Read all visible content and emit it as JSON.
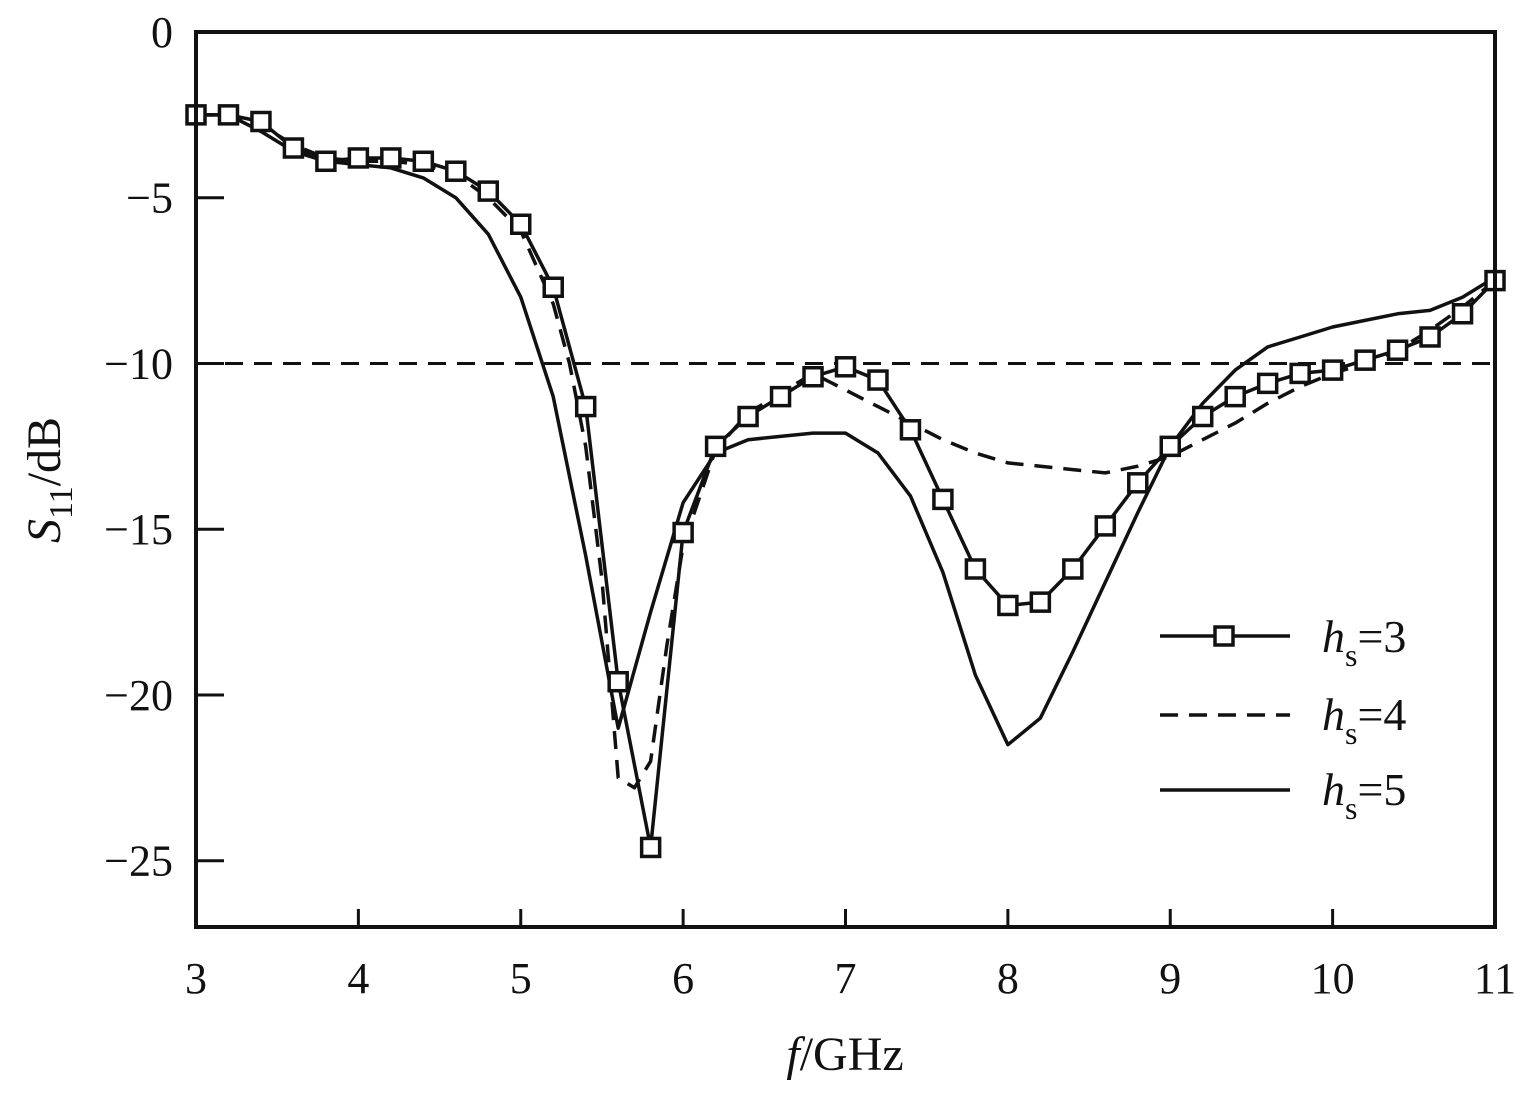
{
  "chart_data": {
    "type": "line",
    "title": "",
    "xlabel": {
      "var": "f",
      "unit": "/GHz"
    },
    "ylabel": {
      "var": "S",
      "sub": "11",
      "unit": "/dB"
    },
    "xlim": [
      3,
      11
    ],
    "ylim": [
      -27,
      0
    ],
    "xticks": [
      3,
      4,
      5,
      6,
      7,
      8,
      9,
      10,
      11
    ],
    "yticks": [
      0,
      -5,
      -10,
      -15,
      -20,
      -25
    ],
    "xtick_labels": [
      "3",
      "4",
      "5",
      "6",
      "7",
      "8",
      "9",
      "10",
      "11"
    ],
    "ytick_labels": [
      "0",
      "−5",
      "−10",
      "−15",
      "−20",
      "−25"
    ],
    "reference_line": {
      "y": -10,
      "style": "dashed"
    },
    "grid": false,
    "legend_position": "bottom-right",
    "series": [
      {
        "legend": {
          "var": "h",
          "sub": "s",
          "value": "=3"
        },
        "style": "solid-square-markers",
        "x": [
          3.0,
          3.2,
          3.4,
          3.6,
          3.8,
          4.0,
          4.2,
          4.4,
          4.6,
          4.8,
          5.0,
          5.2,
          5.4,
          5.6,
          5.8,
          6.0,
          6.2,
          6.4,
          6.6,
          6.8,
          7.0,
          7.2,
          7.4,
          7.6,
          7.8,
          8.0,
          8.2,
          8.4,
          8.6,
          8.8,
          9.0,
          9.2,
          9.4,
          9.6,
          9.8,
          10.0,
          10.2,
          10.4,
          10.6,
          10.8,
          11.0
        ],
        "y": [
          -2.5,
          -2.5,
          -2.7,
          -3.5,
          -3.9,
          -3.8,
          -3.8,
          -3.9,
          -4.2,
          -4.8,
          -5.8,
          -7.7,
          -11.3,
          -19.6,
          -24.6,
          -15.1,
          -12.5,
          -11.6,
          -11.0,
          -10.4,
          -10.1,
          -10.5,
          -12.0,
          -14.1,
          -16.2,
          -17.3,
          -17.2,
          -16.2,
          -14.9,
          -13.6,
          -12.5,
          -11.6,
          -11.0,
          -10.6,
          -10.3,
          -10.2,
          -9.9,
          -9.6,
          -9.2,
          -8.5,
          -7.5
        ]
      },
      {
        "legend": {
          "var": "h",
          "sub": "s",
          "value": "=4"
        },
        "style": "dashed",
        "x": [
          3.0,
          3.2,
          3.4,
          3.6,
          3.8,
          4.0,
          4.2,
          4.4,
          4.6,
          4.8,
          5.0,
          5.2,
          5.3,
          5.4,
          5.5,
          5.6,
          5.7,
          5.8,
          5.9,
          6.0,
          6.2,
          6.4,
          6.6,
          6.8,
          7.0,
          7.2,
          7.4,
          7.6,
          7.8,
          8.0,
          8.2,
          8.4,
          8.6,
          8.8,
          9.0,
          9.2,
          9.4,
          9.6,
          9.8,
          10.0,
          10.2,
          10.4,
          10.6,
          10.8,
          11.0
        ],
        "y": [
          -2.5,
          -2.5,
          -2.8,
          -3.4,
          -3.8,
          -3.9,
          -3.9,
          -4.0,
          -4.3,
          -5.0,
          -6.0,
          -8.2,
          -10.0,
          -12.5,
          -16.5,
          -22.5,
          -22.8,
          -22.0,
          -18.5,
          -15.5,
          -12.6,
          -11.5,
          -10.9,
          -10.3,
          -10.8,
          -11.3,
          -11.8,
          -12.3,
          -12.7,
          -13.0,
          -13.1,
          -13.2,
          -13.3,
          -13.1,
          -12.8,
          -12.3,
          -11.8,
          -11.2,
          -10.7,
          -10.3,
          -10.0,
          -9.6,
          -9.0,
          -8.3,
          -7.5
        ]
      },
      {
        "legend": {
          "var": "h",
          "sub": "s",
          "value": "=5"
        },
        "style": "solid",
        "x": [
          3.0,
          3.2,
          3.4,
          3.6,
          3.8,
          4.0,
          4.2,
          4.4,
          4.6,
          4.8,
          5.0,
          5.2,
          5.4,
          5.6,
          5.8,
          6.0,
          6.2,
          6.4,
          6.6,
          6.8,
          7.0,
          7.2,
          7.4,
          7.6,
          7.8,
          8.0,
          8.2,
          8.4,
          8.6,
          8.8,
          9.0,
          9.2,
          9.4,
          9.6,
          9.8,
          10.0,
          10.2,
          10.4,
          10.6,
          10.8,
          11.0
        ],
        "y": [
          -2.5,
          -2.5,
          -3.0,
          -3.6,
          -3.9,
          -4.0,
          -4.1,
          -4.4,
          -5.0,
          -6.1,
          -8.0,
          -11.0,
          -15.8,
          -21.0,
          -17.5,
          -14.2,
          -12.7,
          -12.3,
          -12.2,
          -12.1,
          -12.1,
          -12.7,
          -14.0,
          -16.3,
          -19.4,
          -21.5,
          -20.7,
          -18.7,
          -16.6,
          -14.5,
          -12.5,
          -11.2,
          -10.2,
          -9.5,
          -9.2,
          -8.9,
          -8.7,
          -8.5,
          -8.4,
          -8.0,
          -7.4
        ]
      }
    ]
  }
}
